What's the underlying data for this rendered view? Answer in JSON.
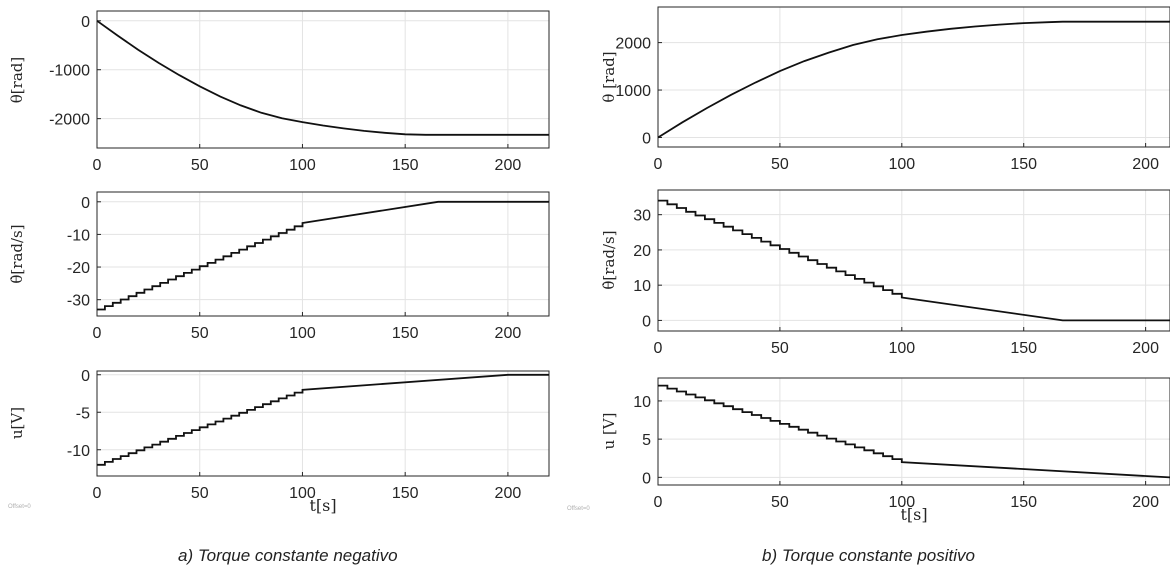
{
  "panels": [
    {
      "caption_letter": "a)",
      "caption_text": " Torque constante negativo",
      "offset_label": "Offset=0",
      "xlabel": "t[s]"
    },
    {
      "caption_letter": "b)",
      "caption_text": " Torque constante positivo",
      "offset_label": "Offset=0",
      "xlabel": "t[s]"
    }
  ],
  "chart_data": [
    {
      "type": "line",
      "panel": "a",
      "ylabel": "θ[rad]",
      "xlim": [
        0,
        220
      ],
      "ylim": [
        -2600,
        200
      ],
      "xticks": [
        0,
        50,
        100,
        150,
        200
      ],
      "yticks": [
        0,
        -1000,
        -2000
      ],
      "grid": true,
      "series": [
        {
          "x": [
            0,
            10,
            20,
            30,
            40,
            50,
            60,
            70,
            80,
            90,
            100,
            110,
            120,
            130,
            140,
            150,
            160,
            166,
            180,
            200,
            220
          ],
          "y": [
            0,
            -300,
            -590,
            -860,
            -1110,
            -1340,
            -1550,
            -1730,
            -1880,
            -1990,
            -2070,
            -2140,
            -2200,
            -2250,
            -2290,
            -2320,
            -2330,
            -2330,
            -2330,
            -2330,
            -2330
          ]
        }
      ]
    },
    {
      "type": "line",
      "panel": "a",
      "ylabel": "θ̇[rad/s]",
      "xlim": [
        0,
        220
      ],
      "ylim": [
        -35,
        3
      ],
      "xticks": [
        0,
        50,
        100,
        150,
        200
      ],
      "yticks": [
        0,
        -10,
        -20,
        -30
      ],
      "grid": true,
      "series": [
        {
          "x": [
            0,
            100,
            166,
            220
          ],
          "y": [
            -33,
            -6.5,
            0,
            0
          ],
          "steps": {
            "start": -33,
            "until": 100,
            "count": 26
          },
          "tail": {
            "from": 100,
            "to": 166,
            "y0": -6.5,
            "y1": 0
          }
        }
      ]
    },
    {
      "type": "line",
      "panel": "a",
      "ylabel": "u[V]",
      "xlim": [
        0,
        220
      ],
      "ylim": [
        -13.5,
        0.5
      ],
      "xticks": [
        0,
        50,
        100,
        150,
        200
      ],
      "yticks": [
        0,
        -5,
        -10
      ],
      "grid": true,
      "series": [
        {
          "x": [
            0,
            100,
            200,
            220
          ],
          "y": [
            -12,
            -2,
            0,
            0
          ],
          "steps": {
            "start": -12,
            "until": 100,
            "count": 26
          },
          "tail": {
            "from": 100,
            "to": 200,
            "y0": -2,
            "y1": 0
          }
        }
      ]
    },
    {
      "type": "line",
      "panel": "b",
      "ylabel": "θ [rad]",
      "xlim": [
        0,
        210
      ],
      "ylim": [
        -200,
        2750
      ],
      "xticks": [
        0,
        50,
        100,
        150,
        200
      ],
      "yticks": [
        0,
        1000,
        2000
      ],
      "grid": true,
      "series": [
        {
          "x": [
            0,
            10,
            20,
            30,
            40,
            50,
            60,
            70,
            80,
            90,
            100,
            110,
            120,
            130,
            140,
            150,
            160,
            166,
            180,
            200,
            210
          ],
          "y": [
            0,
            320,
            620,
            900,
            1160,
            1400,
            1610,
            1790,
            1950,
            2070,
            2160,
            2230,
            2290,
            2340,
            2380,
            2410,
            2430,
            2440,
            2440,
            2440,
            2440
          ]
        }
      ]
    },
    {
      "type": "line",
      "panel": "b",
      "ylabel": "θ̇[rad/s]",
      "xlim": [
        0,
        210
      ],
      "ylim": [
        -3,
        37
      ],
      "xticks": [
        0,
        50,
        100,
        150,
        200
      ],
      "yticks": [
        0,
        10,
        20,
        30
      ],
      "grid": true,
      "series": [
        {
          "x": [
            0,
            100,
            166,
            210
          ],
          "y": [
            34,
            6.5,
            0,
            0
          ],
          "steps": {
            "start": 34,
            "until": 100,
            "count": 26
          },
          "tail": {
            "from": 100,
            "to": 166,
            "y0": 6.5,
            "y1": 0
          }
        }
      ]
    },
    {
      "type": "line",
      "panel": "b",
      "ylabel": "u [V]",
      "xlabel": "t[s]",
      "xlim": [
        0,
        210
      ],
      "ylim": [
        -1,
        13
      ],
      "xticks": [
        0,
        50,
        100,
        150,
        200
      ],
      "yticks": [
        0,
        5,
        10
      ],
      "grid": true,
      "series": [
        {
          "x": [
            0,
            100,
            210
          ],
          "y": [
            12,
            2,
            0
          ],
          "steps": {
            "start": 12,
            "until": 100,
            "count": 26
          },
          "tail": {
            "from": 100,
            "to": 210,
            "y0": 2,
            "y1": 0
          }
        }
      ]
    }
  ]
}
